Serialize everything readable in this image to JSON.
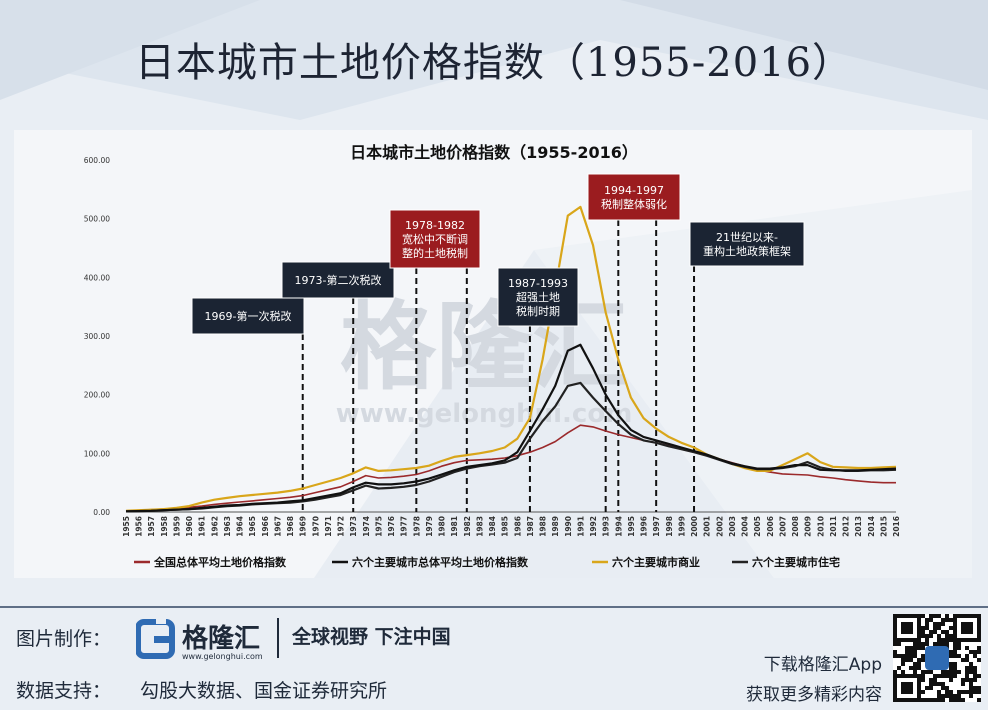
{
  "page": {
    "title": "日本城市土地价格指数（1955-2016）"
  },
  "chart_data": {
    "type": "line",
    "title": "日本城市土地价格指数（1955-2016）",
    "xlabel": "",
    "ylabel": "",
    "ylim": [
      0,
      600
    ],
    "y_ticks": [
      "0.00",
      "100.00",
      "200.00",
      "300.00",
      "400.00",
      "500.00",
      "600.00"
    ],
    "grid": false,
    "legend_position": "bottom",
    "x": [
      1955,
      1956,
      1957,
      1958,
      1959,
      1960,
      1961,
      1962,
      1963,
      1964,
      1965,
      1966,
      1967,
      1968,
      1969,
      1970,
      1971,
      1972,
      1973,
      1974,
      1975,
      1976,
      1977,
      1978,
      1979,
      1980,
      1981,
      1982,
      1983,
      1984,
      1985,
      1986,
      1987,
      1988,
      1989,
      1990,
      1991,
      1992,
      1993,
      1994,
      1995,
      1996,
      1997,
      1998,
      1999,
      2000,
      2001,
      2002,
      2003,
      2004,
      2005,
      2006,
      2007,
      2008,
      2009,
      2010,
      2011,
      2012,
      2013,
      2014,
      2015,
      2016
    ],
    "series": [
      {
        "name": "全国总体平均土地价格指数",
        "color": "#9b2a2c",
        "values": [
          2,
          3,
          4,
          5,
          6,
          8,
          10,
          13,
          15,
          17,
          19,
          21,
          23,
          25,
          28,
          33,
          38,
          43,
          52,
          62,
          58,
          59,
          61,
          64,
          70,
          78,
          84,
          88,
          89,
          90,
          92,
          96,
          102,
          110,
          120,
          135,
          148,
          145,
          138,
          132,
          127,
          122,
          118,
          113,
          107,
          102,
          96,
          90,
          84,
          78,
          72,
          68,
          65,
          64,
          63,
          60,
          58,
          55,
          53,
          51,
          50,
          50
        ],
        "line_width": 1.6
      },
      {
        "name": "六个主要城市总体平均土地价格指数",
        "color": "#111111",
        "values": [
          1,
          1.5,
          2,
          3,
          4,
          5,
          7,
          9,
          11,
          12,
          14,
          15,
          16,
          18,
          20,
          24,
          28,
          32,
          42,
          50,
          47,
          47,
          49,
          52,
          57,
          64,
          71,
          77,
          80,
          83,
          88,
          102,
          138,
          175,
          215,
          275,
          285,
          245,
          200,
          165,
          140,
          128,
          122,
          116,
          110,
          104,
          98,
          90,
          83,
          78,
          74,
          74,
          76,
          80,
          80,
          72,
          71,
          71,
          71,
          72,
          73,
          74
        ],
        "line_width": 2.2
      },
      {
        "name": "六个主要城市商业",
        "color": "#d9a61a",
        "values": [
          2,
          3,
          4,
          5,
          7,
          10,
          16,
          21,
          24,
          27,
          29,
          31,
          33,
          36,
          40,
          46,
          52,
          58,
          66,
          76,
          70,
          71,
          73,
          75,
          79,
          87,
          94,
          97,
          100,
          104,
          110,
          125,
          160,
          260,
          380,
          505,
          520,
          455,
          340,
          260,
          195,
          160,
          142,
          128,
          118,
          110,
          98,
          90,
          82,
          75,
          70,
          70,
          80,
          90,
          100,
          85,
          77,
          76,
          75,
          75,
          76,
          77
        ],
        "line_width": 2.2
      },
      {
        "name": "六个主要城市住宅",
        "color": "#222222",
        "values": [
          1,
          1.5,
          2,
          3,
          4,
          5,
          6,
          8,
          10,
          11,
          13,
          14,
          15,
          16,
          18,
          21,
          25,
          29,
          37,
          45,
          40,
          41,
          43,
          46,
          52,
          60,
          68,
          74,
          78,
          81,
          84,
          92,
          125,
          155,
          180,
          215,
          220,
          195,
          172,
          150,
          132,
          122,
          118,
          112,
          107,
          102,
          96,
          89,
          82,
          77,
          73,
          73,
          75,
          78,
          85,
          76,
          72,
          70,
          70,
          71,
          71,
          72
        ],
        "line_width": 2.2
      }
    ],
    "annotations": [
      {
        "text_lines": [
          "1969-第一次税改"
        ],
        "x_year": 1969,
        "style": "dark"
      },
      {
        "text_lines": [
          "1973-第二次税改"
        ],
        "x_year": 1973,
        "style": "dark"
      },
      {
        "text_lines": [
          "1978-1982",
          "宽松中不断调",
          "整的土地税制"
        ],
        "x_years": [
          1978,
          1982
        ],
        "style": "red"
      },
      {
        "text_lines": [
          "1987-1993",
          "超强土地",
          "税制时期"
        ],
        "x_years": [
          1987,
          1993
        ],
        "style": "dark"
      },
      {
        "text_lines": [
          "1994-1997",
          "税制整体弱化"
        ],
        "x_years": [
          1994,
          1997
        ],
        "style": "red"
      },
      {
        "text_lines": [
          "21世纪以来-",
          "重构土地政策框架"
        ],
        "x_year": 2000,
        "style": "dark"
      }
    ],
    "watermark": "格隆汇",
    "watermark_url": "www.gelonghui.com"
  },
  "footer": {
    "made_by_label": "图片制作：",
    "logo_name": "格隆汇",
    "logo_url": "www.gelonghui.com",
    "slogan": "全球视野  下注中国",
    "data_support_label": "数据支持：",
    "data_support_value": "勾股大数据、国金证券研究所",
    "app_line1": "下载格隆汇App",
    "app_line2": "获取更多精彩内容"
  },
  "colors": {
    "annotation_dark": "#1b2433",
    "annotation_red": "#9b1c1f",
    "logo_blue": "#2f6bb3"
  }
}
